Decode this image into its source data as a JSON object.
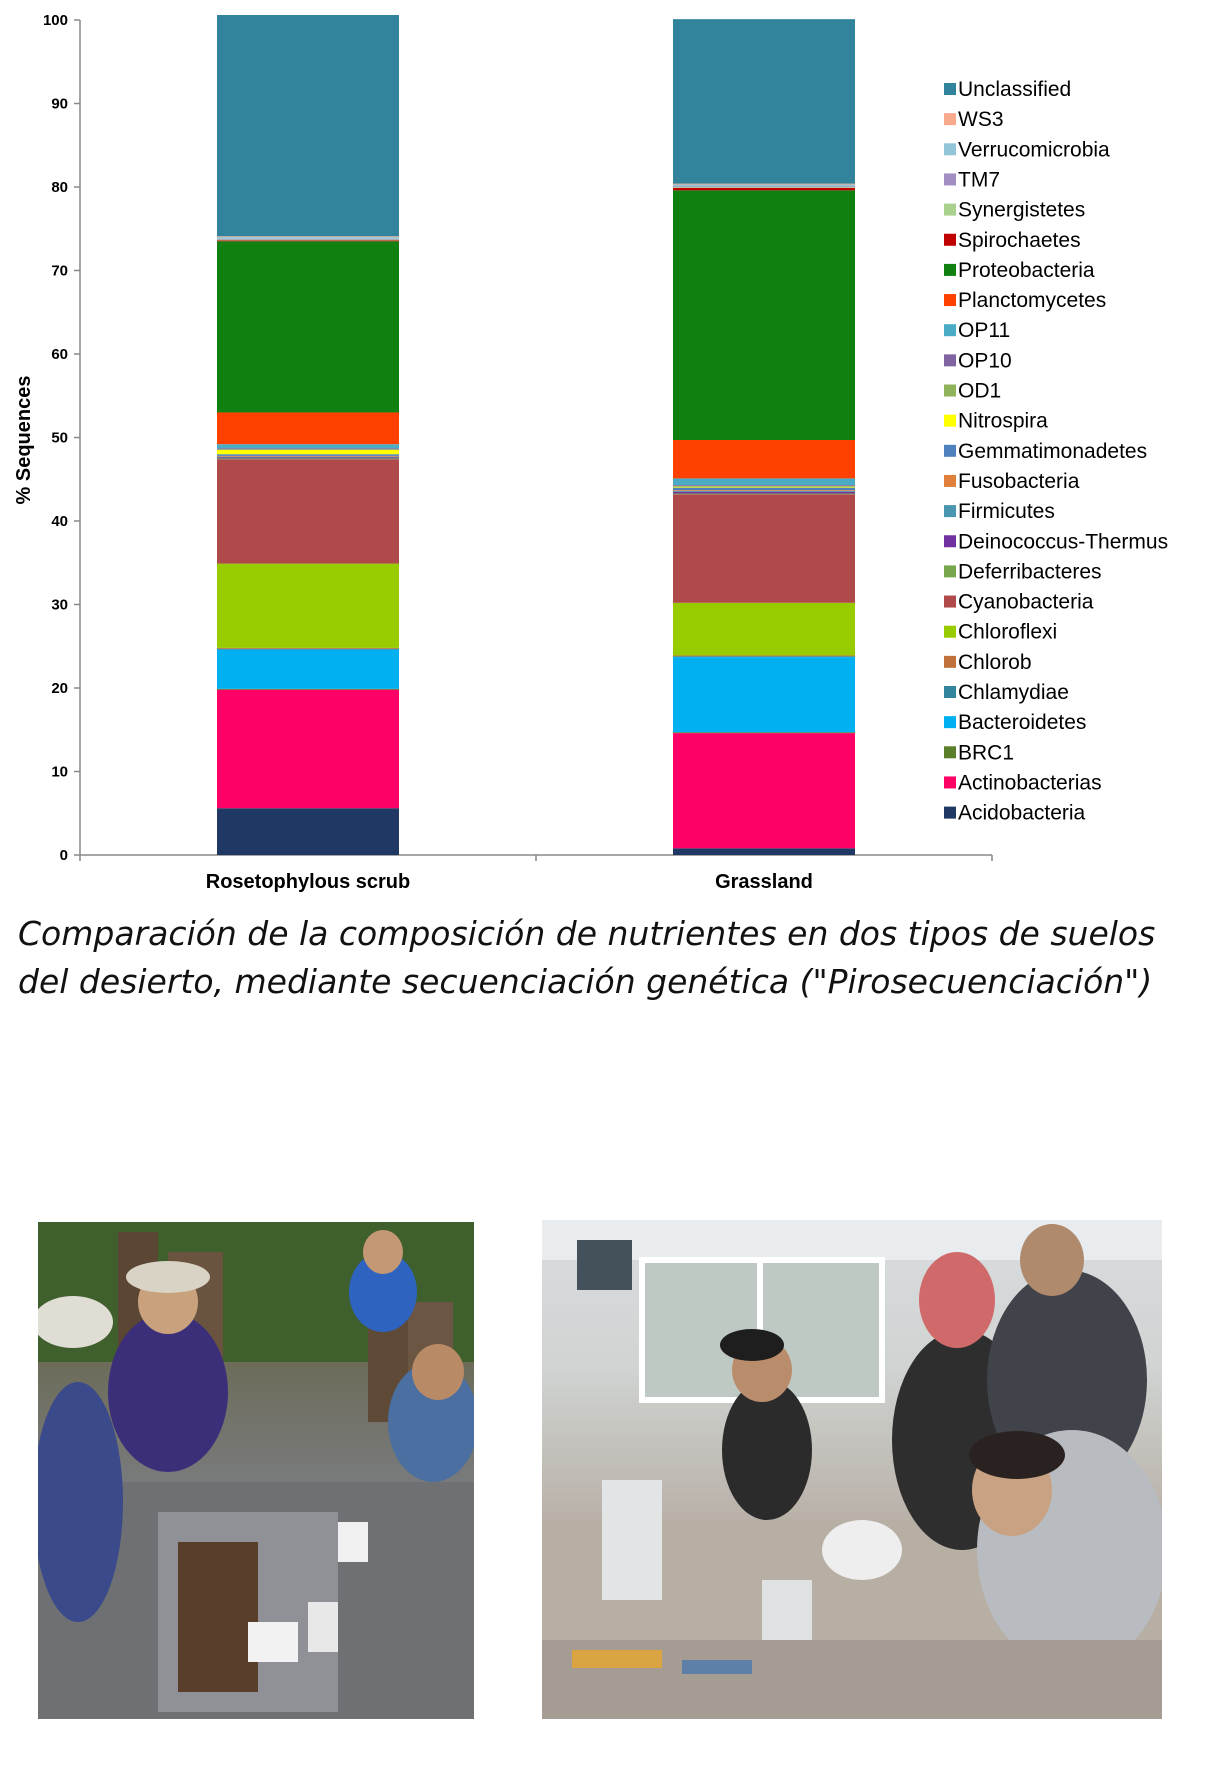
{
  "chart_data": {
    "type": "bar",
    "stacked": true,
    "title": "",
    "xlabel": "",
    "ylabel": "% Sequences",
    "ylim": [
      0,
      100
    ],
    "yticks": [
      0,
      10,
      20,
      30,
      40,
      50,
      60,
      70,
      80,
      90,
      100
    ],
    "grid": false,
    "legend_position": "right",
    "categories": [
      "Rosetophylous scrub",
      "Grassland"
    ],
    "series": [
      {
        "name": "Acidobacteria",
        "color": "#1f3864",
        "values": [
          5.6,
          0.8
        ]
      },
      {
        "name": "Actinobacterias",
        "color": "#ff0066",
        "values": [
          14.2,
          13.8
        ]
      },
      {
        "name": "BRC1",
        "color": "#5b7f2b",
        "values": [
          0.1,
          0.1
        ]
      },
      {
        "name": "Bacteroidetes",
        "color": "#00b0f0",
        "values": [
          4.7,
          9.0
        ]
      },
      {
        "name": "Chlamydiae",
        "color": "#31859c",
        "values": [
          0.1,
          0.1
        ]
      },
      {
        "name": "Chlorob",
        "color": "#c0703b",
        "values": [
          0.1,
          0.1
        ]
      },
      {
        "name": "Chloroflexi",
        "color": "#99cc00",
        "values": [
          10.1,
          6.3
        ]
      },
      {
        "name": "Cyanobacteria",
        "color": "#b04a4a",
        "values": [
          12.5,
          13.0
        ]
      },
      {
        "name": "Deferribacteres",
        "color": "#77a74d",
        "values": [
          0.1,
          0.1
        ]
      },
      {
        "name": "Deinococcus-Thermus",
        "color": "#7030a0",
        "values": [
          0.1,
          0.2
        ]
      },
      {
        "name": "Firmicutes",
        "color": "#4a96b0",
        "values": [
          0.1,
          0.1
        ]
      },
      {
        "name": "Fusobacteria",
        "color": "#e0803b",
        "values": [
          0.1,
          0.1
        ]
      },
      {
        "name": "Gemmatimonadetes",
        "color": "#4f81bd",
        "values": [
          0.2,
          0.3
        ]
      },
      {
        "name": "Nitrospira",
        "color": "#ffff00",
        "values": [
          0.5,
          0.1
        ]
      },
      {
        "name": "OD1",
        "color": "#8fb35a",
        "values": [
          0.1,
          0.1
        ]
      },
      {
        "name": "OP10",
        "color": "#8064a2",
        "values": [
          0.1,
          0.1
        ]
      },
      {
        "name": "OP11",
        "color": "#4bacc6",
        "values": [
          0.5,
          0.8
        ]
      },
      {
        "name": "Planctomycetes",
        "color": "#ff4000",
        "values": [
          3.8,
          4.6
        ]
      },
      {
        "name": "Proteobacteria",
        "color": "#108010",
        "values": [
          20.5,
          29.9
        ]
      },
      {
        "name": "Spirochaetes",
        "color": "#c00000",
        "values": [
          0.1,
          0.3
        ]
      },
      {
        "name": "Synergistetes",
        "color": "#a9d18e",
        "values": [
          0.1,
          0.1
        ]
      },
      {
        "name": "TM7",
        "color": "#a18ec2",
        "values": [
          0.1,
          0.1
        ]
      },
      {
        "name": "Verrucomicrobia",
        "color": "#93c5d8",
        "values": [
          0.2,
          0.2
        ]
      },
      {
        "name": "WS3",
        "color": "#f9a98c",
        "values": [
          0.1,
          0.1
        ]
      },
      {
        "name": "Unclassified",
        "color": "#31849b",
        "values": [
          26.5,
          19.7
        ]
      }
    ]
  },
  "caption": "Comparación de la composición de nutrientes en dos tipos de suelos del desierto,  mediante secuenciación genética (\"Pirosecuenciación\")"
}
